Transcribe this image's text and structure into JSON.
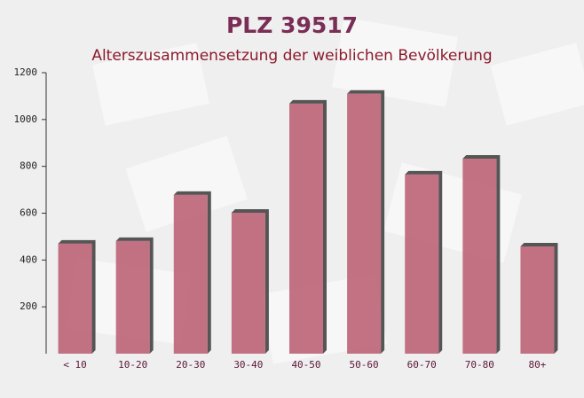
{
  "chart_data": {
    "type": "bar",
    "title": "PLZ 39517",
    "subtitle": "Alterszusammensetzung der weiblichen Bevölkerung",
    "categories": [
      "< 10",
      "10-20",
      "20-30",
      "30-40",
      "40-50",
      "50-60",
      "60-70",
      "70-80",
      "80+"
    ],
    "values": [
      470,
      481,
      678,
      602,
      1068,
      1110,
      765,
      833,
      458
    ],
    "color": "#b85a6e",
    "ylim": [
      0,
      1200
    ],
    "yticks": [
      200,
      400,
      600,
      800,
      1000,
      1200
    ],
    "grid": false
  }
}
